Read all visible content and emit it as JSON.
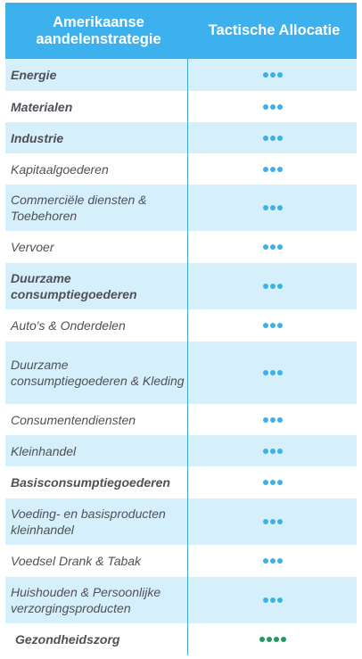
{
  "header": {
    "col1": "Amerikaanse aandelenstrategie",
    "col2": "Tactische Allocatie"
  },
  "colors": {
    "header_bg": "#3db1ee",
    "row_shade": "#d5f0fb",
    "dot_neutral": "#3cb1e8",
    "dot_positive": "#1f9a5a"
  },
  "rows": [
    {
      "label": "Energie",
      "bold": true,
      "dots": 3,
      "dot_color": "#3cb1e8"
    },
    {
      "label": "Materialen",
      "bold": true,
      "dots": 3,
      "dot_color": "#3cb1e8"
    },
    {
      "label": "Industrie",
      "bold": true,
      "dots": 3,
      "dot_color": "#3cb1e8"
    },
    {
      "label": "Kapitaalgoederen",
      "bold": false,
      "dots": 3,
      "dot_color": "#3cb1e8"
    },
    {
      "label": "Commerciële diensten & Toebehoren",
      "bold": false,
      "dots": 3,
      "dot_color": "#3cb1e8"
    },
    {
      "label": "Vervoer",
      "bold": false,
      "dots": 3,
      "dot_color": "#3cb1e8"
    },
    {
      "label": "Duurzame consumptiegoederen",
      "bold": true,
      "dots": 3,
      "dot_color": "#3cb1e8"
    },
    {
      "label": "Auto's & Onderdelen",
      "bold": false,
      "dots": 3,
      "dot_color": "#3cb1e8"
    },
    {
      "label": "Duurzame consumptiegoederen & Kleding",
      "bold": false,
      "dots": 3,
      "dot_color": "#3cb1e8"
    },
    {
      "label": "Consumentendiensten",
      "bold": false,
      "dots": 3,
      "dot_color": "#3cb1e8"
    },
    {
      "label": "Kleinhandel",
      "bold": false,
      "dots": 3,
      "dot_color": "#3cb1e8"
    },
    {
      "label": "Basisconsumptiegoederen",
      "bold": true,
      "dots": 3,
      "dot_color": "#3cb1e8"
    },
    {
      "label": "Voeding- en basisproducten kleinhandel",
      "bold": false,
      "dots": 3,
      "dot_color": "#3cb1e8"
    },
    {
      "label": "Voedsel Drank & Tabak",
      "bold": false,
      "dots": 3,
      "dot_color": "#3cb1e8"
    },
    {
      "label": "Huishouden & Persoonlijke verzorgingsproducten",
      "bold": false,
      "dots": 3,
      "dot_color": "#3cb1e8"
    },
    {
      "label": "Gezondheidszorg",
      "bold": true,
      "dots": 4,
      "dot_color": "#1f9a5a"
    }
  ]
}
